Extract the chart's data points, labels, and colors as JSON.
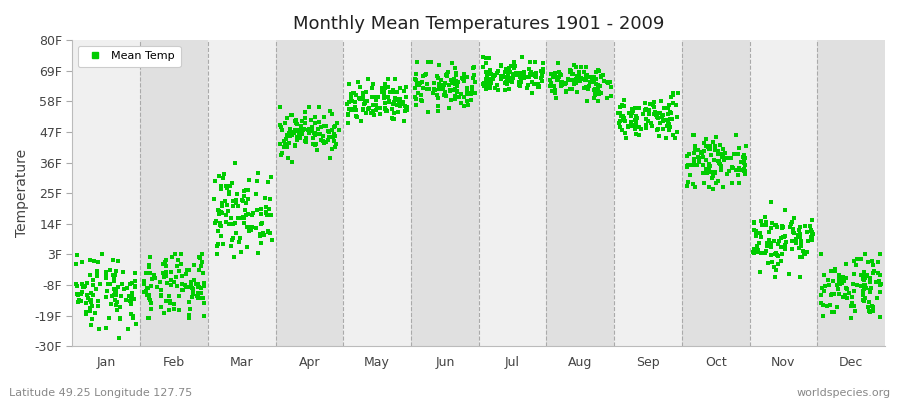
{
  "title": "Monthly Mean Temperatures 1901 - 2009",
  "ylabel": "Temperature",
  "xlabel_bottom_left": "Latitude 49.25 Longitude 127.75",
  "xlabel_bottom_right": "worldspecies.org",
  "legend_label": "Mean Temp",
  "dot_color": "#00cc00",
  "background_color": "#ffffff",
  "band_color_white": "#f0f0f0",
  "band_color_gray": "#e0e0e0",
  "ytick_labels": [
    "-30F",
    "-19F",
    "-8F",
    "3F",
    "14F",
    "25F",
    "36F",
    "47F",
    "58F",
    "69F",
    "80F"
  ],
  "ytick_values": [
    -30,
    -19,
    -8,
    3,
    14,
    25,
    36,
    47,
    58,
    69,
    80
  ],
  "ylim": [
    -30,
    80
  ],
  "months": [
    "Jan",
    "Feb",
    "Mar",
    "Apr",
    "May",
    "Jun",
    "Jul",
    "Aug",
    "Sep",
    "Oct",
    "Nov",
    "Dec"
  ],
  "monthly_mean_F": [
    -10,
    -9,
    18,
    47,
    57,
    63,
    67,
    65,
    52,
    36,
    8,
    -8
  ],
  "monthly_std_F": [
    7,
    6,
    7,
    4,
    4,
    4,
    3,
    3,
    4,
    4,
    6,
    6
  ],
  "monthly_min_F": [
    -27,
    -20,
    2,
    36,
    47,
    54,
    60,
    57,
    45,
    26,
    -5,
    -20
  ],
  "monthly_max_F": [
    3,
    3,
    36,
    56,
    66,
    72,
    74,
    72,
    61,
    46,
    22,
    3
  ],
  "n_years": 109
}
